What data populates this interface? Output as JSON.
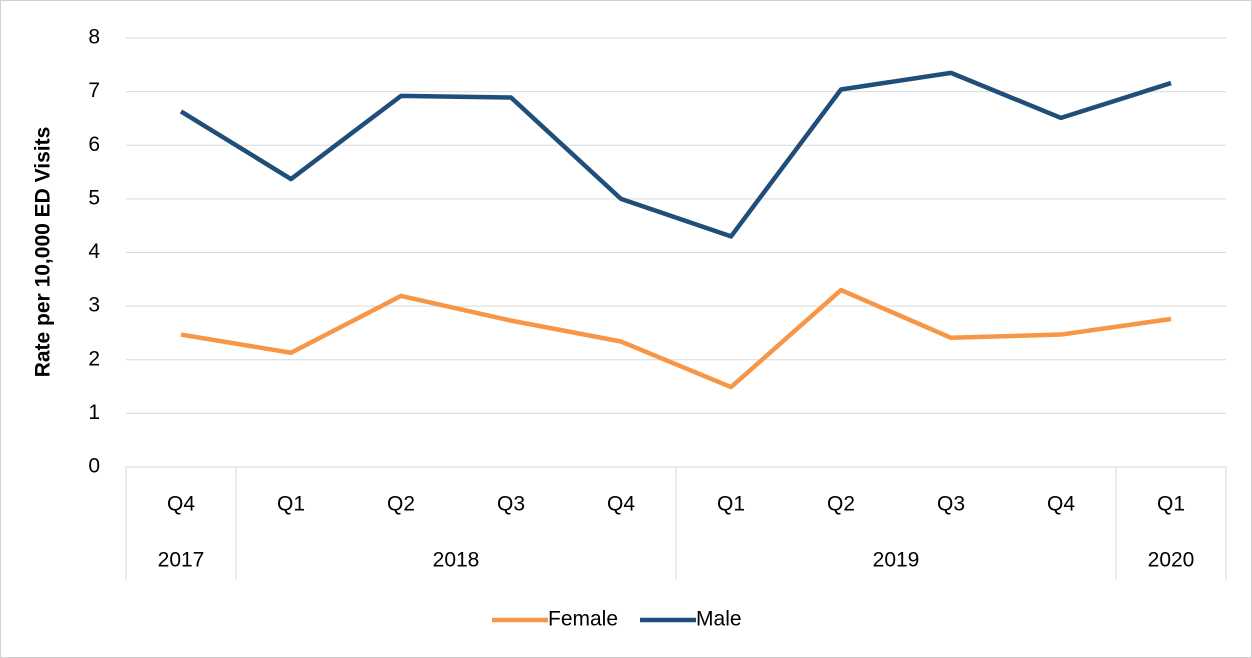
{
  "chart_data": {
    "type": "line",
    "y_label": "Rate per 10,000 ED Visits",
    "groups": [
      {
        "name": "2017",
        "categories": [
          "Q4"
        ]
      },
      {
        "name": "2018",
        "categories": [
          "Q1",
          "Q2",
          "Q3",
          "Q4"
        ]
      },
      {
        "name": "2019",
        "categories": [
          "Q1",
          "Q2",
          "Q3",
          "Q4"
        ]
      },
      {
        "name": "2020",
        "categories": [
          "Q1"
        ]
      }
    ],
    "series": [
      {
        "name": "Female",
        "color": "#F79646",
        "values": [
          2.47,
          2.13,
          3.19,
          2.73,
          2.34,
          1.49,
          3.3,
          2.41,
          2.47,
          2.76
        ]
      },
      {
        "name": "Male",
        "color": "#1F4E79",
        "values": [
          6.63,
          5.37,
          6.92,
          6.89,
          5.0,
          4.3,
          7.04,
          7.35,
          6.51,
          7.16
        ]
      }
    ],
    "ylim": [
      0,
      8
    ],
    "yticks": [
      0,
      1,
      2,
      3,
      4,
      5,
      6,
      7,
      8
    ],
    "grid": true,
    "legend": "bottom"
  }
}
